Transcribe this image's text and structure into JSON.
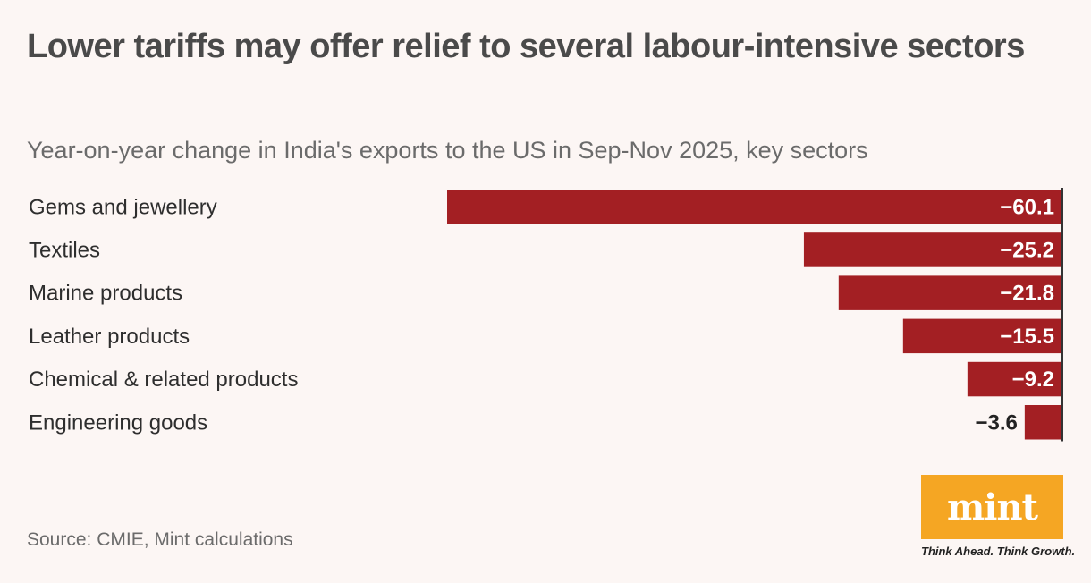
{
  "title": "Lower tariffs may offer relief to several labour-intensive sectors",
  "subtitle": "Year-on-year change in India's exports to the US in Sep-Nov 2025, key sectors",
  "source": "Source: CMIE, Mint calculations",
  "logo": {
    "text": "mint",
    "tagline": "Think Ahead. Think Growth.",
    "color": "#f5a623"
  },
  "colors": {
    "bar": "#a31f23",
    "axis": "#333333",
    "label_inside": "#ffffff",
    "label_outside": "#222222"
  },
  "chart_data": {
    "type": "bar",
    "orientation": "horizontal",
    "categories": [
      "Gems and jewellery",
      "Textiles",
      "Marine products",
      "Leather products",
      "Chemical & related products",
      "Engineering goods"
    ],
    "values": [
      -60.1,
      -25.2,
      -21.8,
      -15.5,
      -9.2,
      -3.6
    ],
    "labels": [
      "−60.1",
      "−25.2",
      "−21.8",
      "−15.5",
      "−9.2",
      "−3.6"
    ],
    "xlim": [
      -60.1,
      0
    ],
    "grid": false
  }
}
